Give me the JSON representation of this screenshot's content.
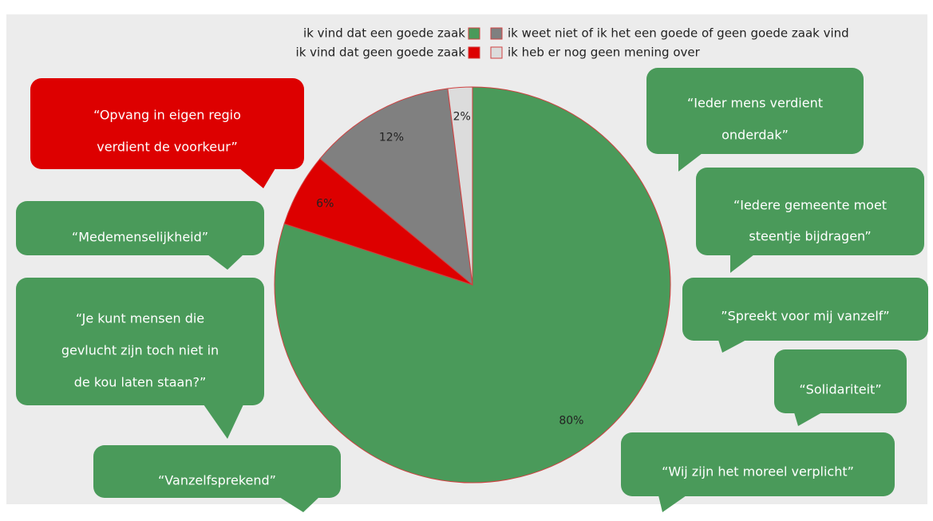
{
  "chart_data": {
    "type": "pie",
    "categories": [
      "ik vind dat een goede zaak",
      "ik vind dat geen goede zaak",
      "ik weet niet of ik het een goede of geen goede zaak vind",
      "ik heb er nog geen mening over"
    ],
    "values": [
      80,
      6,
      12,
      2
    ],
    "value_labels": [
      "80%",
      "6%",
      "12%",
      "2%"
    ],
    "colors": [
      "#4a9a5a",
      "#dd0000",
      "#808080",
      "#dcdcdc"
    ],
    "legend": "top",
    "annotations": [
      {
        "lines": [
          "“Opvang in eigen regio",
          "verdient de voorkeur”"
        ],
        "color": "#dd0000"
      },
      {
        "lines": [
          "“Medemenselijkheid”"
        ],
        "color": "#4a9a5a"
      },
      {
        "lines": [
          "“Je kunt mensen die",
          "gevlucht zijn toch niet in",
          "de kou laten staan?”"
        ],
        "color": "#4a9a5a"
      },
      {
        "lines": [
          "“Vanzelfsprekend”"
        ],
        "color": "#4a9a5a"
      },
      {
        "lines": [
          "“Ieder mens verdient",
          "onderdak”"
        ],
        "color": "#4a9a5a"
      },
      {
        "lines": [
          "“Iedere gemeente moet",
          "steentje bijdragen”"
        ],
        "color": "#4a9a5a"
      },
      {
        "lines": [
          "”Spreekt voor mij vanzelf”"
        ],
        "color": "#4a9a5a"
      },
      {
        "lines": [
          "“Solidariteit”"
        ],
        "color": "#4a9a5a"
      },
      {
        "lines": [
          "“Wij zijn het moreel verplicht”"
        ],
        "color": "#4a9a5a"
      }
    ]
  }
}
